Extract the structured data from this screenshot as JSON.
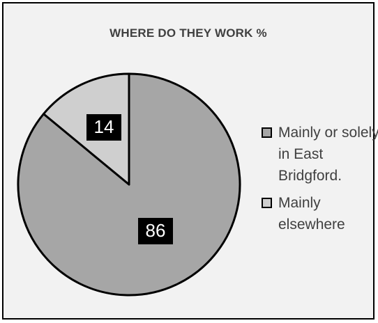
{
  "chart_data": {
    "type": "pie",
    "title": "WHERE DO THEY WORK %",
    "slices": [
      {
        "label": "Mainly or solely in East Bridgford.",
        "value": 86,
        "color": "#a6a6a6"
      },
      {
        "label": "Mainly elsewhere",
        "value": 14,
        "color": "#cfcfcf"
      }
    ],
    "data_labels": [
      "86",
      "14"
    ],
    "legend_position": "right",
    "colors": {
      "background": "#f2f2f2",
      "border": "#000000",
      "label_box": "#000000",
      "label_text": "#ffffff"
    }
  },
  "legend": {
    "items": [
      {
        "label": "Mainly or solely in East Bridgford.",
        "color": "#a6a6a6"
      },
      {
        "label": "Mainly elsewhere",
        "color": "#cfcfcf"
      }
    ]
  }
}
